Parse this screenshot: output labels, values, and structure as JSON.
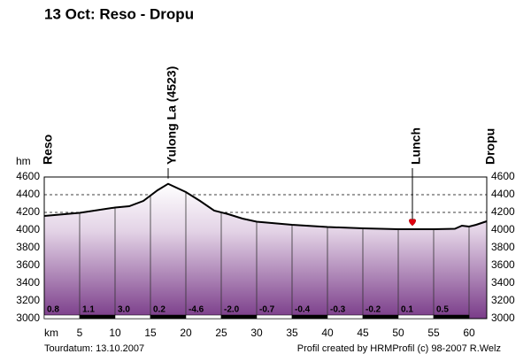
{
  "chart_data": {
    "type": "area",
    "title": "13 Oct: Reso - Dropu",
    "y_label": "hm",
    "x_label": "km",
    "x": [
      0,
      5,
      10,
      12,
      14,
      16,
      17.5,
      20,
      22,
      24,
      26,
      28,
      30,
      35,
      40,
      45,
      50,
      52,
      55,
      58,
      59,
      60,
      61,
      62.5
    ],
    "values": [
      4160,
      4195,
      4255,
      4270,
      4330,
      4450,
      4523,
      4430,
      4330,
      4220,
      4180,
      4130,
      4095,
      4060,
      4035,
      4020,
      4010,
      4010,
      4010,
      4015,
      4050,
      4040,
      4060,
      4100
    ],
    "color": "#000000",
    "xlim": [
      0,
      62.5
    ],
    "ylim": [
      3000,
      4600
    ],
    "xticks": [
      5,
      10,
      15,
      20,
      25,
      30,
      35,
      40,
      45,
      50,
      55,
      60
    ],
    "yticks": [
      3000,
      3200,
      3400,
      3600,
      3800,
      4000,
      4200,
      4400,
      4600
    ],
    "grid": true,
    "annotations": [
      {
        "label": "Reso",
        "x": 0
      },
      {
        "label": "Yulong La (4523)",
        "x": 17.5
      },
      {
        "label": "Lunch",
        "x": 52
      },
      {
        "label": "Dropu",
        "x": 62.5
      }
    ],
    "grades": {
      "values": [
        0.8,
        1.1,
        3.0,
        0.2,
        -4.6,
        -2.0,
        -0.7,
        -0.4,
        -0.3,
        -0.2,
        0.1,
        0.5
      ],
      "value_labels": [
        "0.8",
        "1.1",
        "3.0",
        "0.2",
        "-4.6",
        "-2.0",
        "-0.7",
        "-0.4",
        "-0.3",
        "-0.2",
        "0.1",
        "0.5"
      ]
    }
  },
  "footer": {
    "left": "Tourdatum: 13.10.2007",
    "right": "Profil created by HRMProfil (c) 98-2007 R.Welz"
  }
}
